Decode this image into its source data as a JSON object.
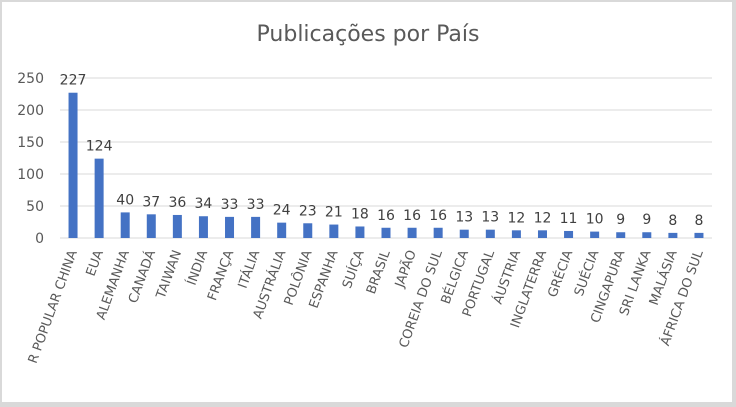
{
  "chart_data": {
    "type": "bar",
    "title": "Publicações por País",
    "xlabel": "",
    "ylabel": "",
    "ylim": [
      0,
      250
    ],
    "yticks": [
      0,
      50,
      100,
      150,
      200,
      250
    ],
    "grid": true,
    "legend": "none",
    "bar_color": "#4472c4",
    "categories": [
      "R POPULAR CHINA",
      "EUA",
      "ALEMANHA",
      "CANADÁ",
      "TAIWAN",
      "ÍNDIA",
      "FRANÇA",
      "ITÁLIA",
      "AUSTRÁLIA",
      "POLÔNIA",
      "ESPANHA",
      "SUÍÇA",
      "BRASIL",
      "JAPÃO",
      "COREIA DO SUL",
      "BÉLGICA",
      "PORTUGAL",
      "ÁUSTRIA",
      "INGLATERRA",
      "GRÉCIA",
      "SUÉCIA",
      "CINGAPURA",
      "SRI LANKA",
      "MALÁSIA",
      "ÁFRICA DO SUL"
    ],
    "values": [
      227,
      124,
      40,
      37,
      36,
      34,
      33,
      33,
      24,
      23,
      21,
      18,
      16,
      16,
      16,
      13,
      13,
      12,
      12,
      11,
      10,
      9,
      9,
      8,
      8
    ]
  }
}
